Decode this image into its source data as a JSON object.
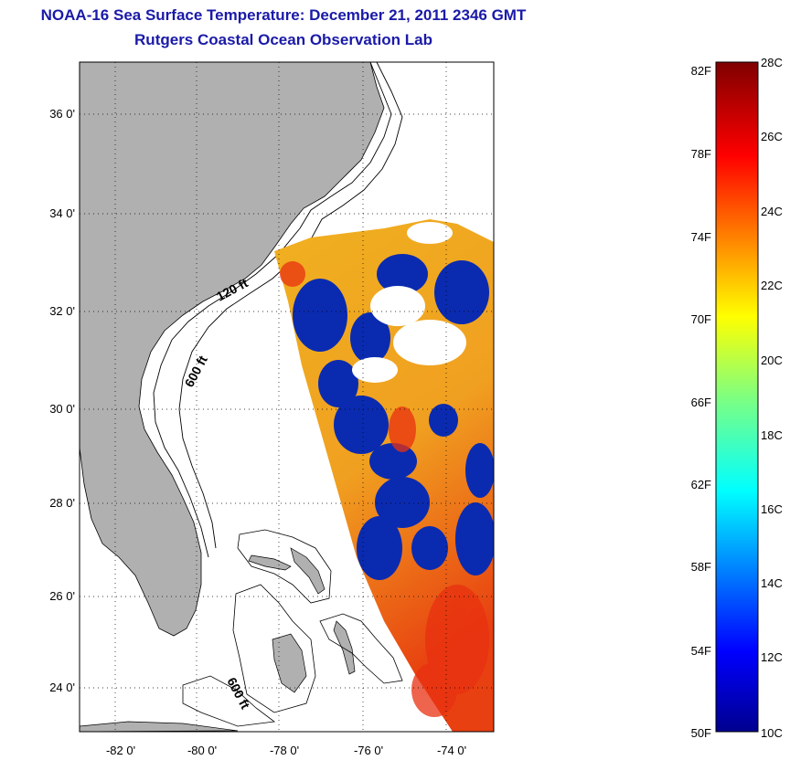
{
  "title": {
    "line1": "NOAA-16 Sea Surface Temperature:  December 21, 2011 2346 GMT",
    "line2": "Rutgers Coastal Ocean Observation Lab"
  },
  "map": {
    "lat_labels": [
      "36 0'",
      "34 0'",
      "32 0'",
      "30 0'",
      "28 0'",
      "26 0'",
      "24 0'"
    ],
    "lon_labels": [
      "-82 0'",
      "-80 0'",
      "-78 0'",
      "-76 0'",
      "-74 0'"
    ],
    "lat_range": [
      23,
      37.2
    ],
    "lon_range": [
      -83,
      -73
    ],
    "contours": [
      "120 ft",
      "600 ft",
      "600 ft"
    ],
    "colors": {
      "land": "#b0b0b0",
      "ocean_nodata": "#ffffff",
      "cold": "#0a2bb0",
      "warm": "#f0a020",
      "hot": "#e83010"
    }
  },
  "colorbar": {
    "f_labels": [
      "82F",
      "78F",
      "74F",
      "70F",
      "66F",
      "62F",
      "58F",
      "54F",
      "50F"
    ],
    "c_labels": [
      "28C",
      "26C",
      "24C",
      "22C",
      "20C",
      "18C",
      "16C",
      "14C",
      "12C",
      "10C"
    ],
    "range_c": [
      10,
      28
    ],
    "range_f": [
      50,
      82.4
    ],
    "colormap": "jet"
  }
}
